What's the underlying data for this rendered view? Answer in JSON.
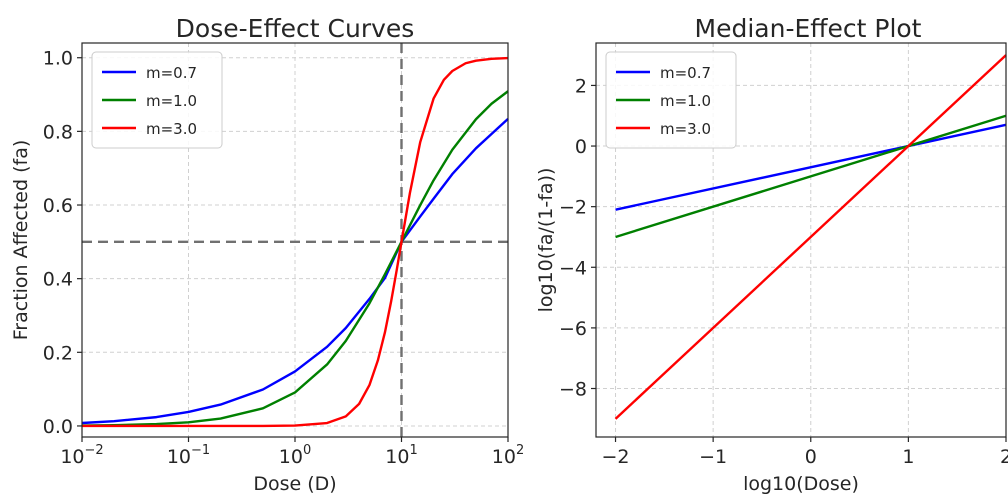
{
  "chart_data": [
    {
      "type": "line",
      "title": "Dose-Effect Curves",
      "xlabel": "Dose (D)",
      "ylabel": "Fraction Affected (fa)",
      "xscale": "log",
      "xlim": [
        0.01,
        100
      ],
      "ylim": [
        -0.03,
        1.04
      ],
      "xticks": [
        {
          "value": 0.01,
          "base": "10",
          "exp": "−2"
        },
        {
          "value": 0.1,
          "base": "10",
          "exp": "−1"
        },
        {
          "value": 1,
          "base": "10",
          "exp": "0"
        },
        {
          "value": 10,
          "base": "10",
          "exp": "1"
        },
        {
          "value": 100,
          "base": "10",
          "exp": "2"
        }
      ],
      "yticks": [
        {
          "value": 0.0,
          "label": "0.0"
        },
        {
          "value": 0.2,
          "label": "0.2"
        },
        {
          "value": 0.4,
          "label": "0.4"
        },
        {
          "value": 0.6,
          "label": "0.6"
        },
        {
          "value": 0.8,
          "label": "0.8"
        },
        {
          "value": 1.0,
          "label": "1.0"
        }
      ],
      "grid": true,
      "legend": "top-left",
      "reference_lines": {
        "vertical_x": 10,
        "horizontal_y": 0.5
      },
      "series": [
        {
          "name": "m=0.7",
          "color": "#0000ff",
          "x": [
            0.01,
            0.02,
            0.05,
            0.1,
            0.2,
            0.5,
            1,
            2,
            3,
            5,
            7,
            10,
            15,
            20,
            30,
            50,
            70,
            100
          ],
          "y": [
            0.008,
            0.013,
            0.024,
            0.038,
            0.058,
            0.099,
            0.148,
            0.215,
            0.266,
            0.345,
            0.402,
            0.5,
            0.569,
            0.617,
            0.684,
            0.754,
            0.793,
            0.834
          ]
        },
        {
          "name": "m=1.0",
          "color": "#008000",
          "x": [
            0.01,
            0.02,
            0.05,
            0.1,
            0.2,
            0.5,
            1,
            2,
            3,
            5,
            7,
            10,
            15,
            20,
            30,
            50,
            70,
            100
          ],
          "y": [
            0.001,
            0.002,
            0.005,
            0.01,
            0.02,
            0.048,
            0.091,
            0.167,
            0.231,
            0.333,
            0.412,
            0.5,
            0.6,
            0.667,
            0.75,
            0.833,
            0.875,
            0.909
          ]
        },
        {
          "name": "m=3.0",
          "color": "#ff0000",
          "x": [
            0.01,
            0.1,
            0.5,
            1,
            2,
            3,
            4,
            5,
            6,
            7,
            8,
            9,
            10,
            12,
            15,
            20,
            25,
            30,
            40,
            50,
            70,
            100
          ],
          "y": [
            0.0,
            0.0,
            0.0001,
            0.001,
            0.008,
            0.026,
            0.06,
            0.111,
            0.178,
            0.255,
            0.339,
            0.422,
            0.5,
            0.633,
            0.771,
            0.889,
            0.94,
            0.964,
            0.985,
            0.992,
            0.997,
            0.999
          ]
        }
      ]
    },
    {
      "type": "line",
      "title": "Median-Effect Plot",
      "xlabel": "log10(Dose)",
      "ylabel": "log10(fa/(1-fa))",
      "xlim": [
        -2.2,
        2.0
      ],
      "ylim": [
        -9.6,
        3.4
      ],
      "xticks": [
        {
          "value": -2,
          "label": "−2"
        },
        {
          "value": -1,
          "label": "−1"
        },
        {
          "value": 0,
          "label": "0"
        },
        {
          "value": 1,
          "label": "1"
        },
        {
          "value": 2,
          "label": "2"
        }
      ],
      "yticks": [
        {
          "value": 2,
          "label": "2"
        },
        {
          "value": 0,
          "label": "0"
        },
        {
          "value": -2,
          "label": "−2"
        },
        {
          "value": -4,
          "label": "−4"
        },
        {
          "value": -6,
          "label": "−6"
        },
        {
          "value": -8,
          "label": "−8"
        }
      ],
      "grid": true,
      "legend": "top-left",
      "series": [
        {
          "name": "m=0.7",
          "color": "#0000ff",
          "x": [
            -2,
            2
          ],
          "y": [
            -2.1,
            0.7
          ]
        },
        {
          "name": "m=1.0",
          "color": "#008000",
          "x": [
            -2,
            2
          ],
          "y": [
            -3.0,
            1.0
          ]
        },
        {
          "name": "m=3.0",
          "color": "#ff0000",
          "x": [
            -2,
            2
          ],
          "y": [
            -9.0,
            3.0
          ]
        }
      ]
    }
  ]
}
